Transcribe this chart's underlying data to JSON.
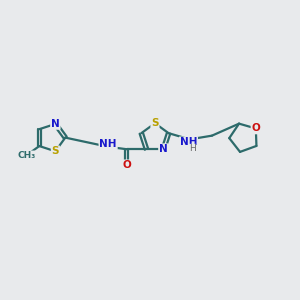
{
  "background_color": "#e8eaec",
  "bond_color": "#2d6b6b",
  "bond_width": 1.6,
  "atom_colors": {
    "N": "#1818cc",
    "S": "#b8a000",
    "O": "#cc1010",
    "C": "#2d6b6b",
    "H": "#666666"
  },
  "font_size": 7.5,
  "fig_size": [
    3.0,
    3.0
  ],
  "dpi": 100,
  "xlim": [
    0,
    12
  ],
  "ylim": [
    0,
    10
  ]
}
